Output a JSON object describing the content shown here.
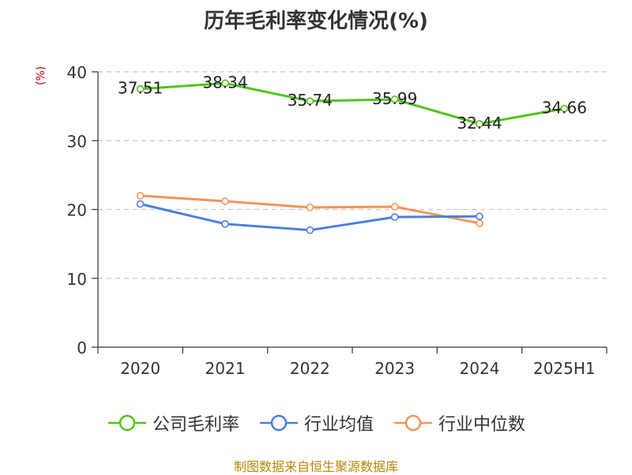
{
  "chart_data": {
    "type": "line",
    "title": "历年毛利率变化情况(%)",
    "ylabel": "(%)",
    "xlabel": "",
    "categories": [
      "2020",
      "2021",
      "2022",
      "2023",
      "2024",
      "2025H1"
    ],
    "ylim": [
      0,
      40
    ],
    "yticks": [
      0,
      10,
      20,
      30,
      40
    ],
    "grid": true,
    "legend_position": "bottom",
    "series": [
      {
        "name": "公司毛利率",
        "color": "#52c41a",
        "values": [
          37.51,
          38.34,
          35.74,
          35.99,
          32.44,
          34.66
        ],
        "labels": [
          "37.51",
          "38.34",
          "35.74",
          "35.99",
          "32.44",
          "34.66"
        ]
      },
      {
        "name": "行业均值",
        "color": "#4a7fe0",
        "values": [
          20.8,
          17.9,
          17.0,
          18.9,
          19.0,
          null
        ],
        "labels": []
      },
      {
        "name": "行业中位数",
        "color": "#f4935a",
        "values": [
          22.0,
          21.2,
          20.3,
          20.4,
          18.0,
          null
        ],
        "labels": []
      }
    ]
  },
  "source": "制图数据来自恒生聚源数据库"
}
